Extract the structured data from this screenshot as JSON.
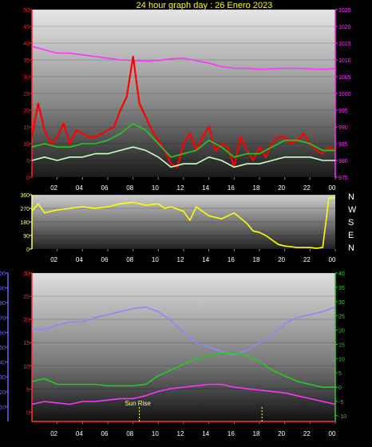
{
  "title": "24 hour graph day : 26 Enero 2023",
  "compass": [
    "N",
    "W",
    "S",
    "E",
    "N"
  ],
  "colors": {
    "title": "#ffff00",
    "wind_avg": "#ff0000",
    "wind_smooth": "#22cc22",
    "wind_gust_light": "#ccffcc",
    "pressure": "#ff33ff",
    "direction": "#ffff00",
    "humidity": "#8888ff",
    "temperature": "#22cc22",
    "dewpoint": "#ff33ff",
    "axis_left_speed": "#ff2222",
    "axis_right_pressure": "#ff33ff",
    "axis_humidity": "#6666ff",
    "axis_temp_left": "#ff3333",
    "axis_temp_right": "#33cc33",
    "sun": "#ffff66"
  },
  "chart_data": [
    {
      "type": "line",
      "name": "wind-and-pressure",
      "x_ticks": [
        "02",
        "04",
        "06",
        "08",
        "10",
        "12",
        "14",
        "16",
        "18",
        "20",
        "22",
        "00"
      ],
      "xlim": [
        0,
        24
      ],
      "y_left": {
        "ticks": [
          "0",
          "5",
          "10",
          "15",
          "20",
          "25",
          "30",
          "35",
          "40",
          "45",
          "50"
        ],
        "ylim": [
          0,
          50
        ]
      },
      "y_right": {
        "ticks": [
          "975",
          "980",
          "985",
          "990",
          "995",
          "1000",
          "1005",
          "1010",
          "1015",
          "1020",
          "1025"
        ],
        "ylim": [
          975,
          1025
        ]
      },
      "series": [
        {
          "axis": "right",
          "color_key": "pressure",
          "x": [
            0,
            1,
            2,
            3,
            4,
            5,
            6,
            7,
            8,
            9,
            10,
            11,
            12,
            13,
            14,
            15,
            16,
            17,
            18,
            19,
            20,
            21,
            22,
            23,
            24
          ],
          "y": [
            1014,
            1013,
            1012,
            1012,
            1011.5,
            1011,
            1010.5,
            1010,
            1009.8,
            1009.6,
            1009.8,
            1010.3,
            1010.5,
            1009.8,
            1009,
            1008,
            1007.5,
            1007.5,
            1007.2,
            1007.3,
            1007.5,
            1007.5,
            1007.3,
            1007.2,
            1007.4
          ]
        },
        {
          "axis": "left",
          "color_key": "wind_avg",
          "x": [
            0,
            0.5,
            1,
            1.5,
            2,
            2.5,
            3,
            3.5,
            4,
            4.5,
            5,
            5.5,
            6,
            6.5,
            7,
            7.5,
            8,
            8.5,
            9,
            9.5,
            10,
            10.5,
            11,
            11.5,
            12,
            12.5,
            13,
            13.5,
            14,
            14.5,
            15,
            15.5,
            16,
            16.5,
            17,
            17.5,
            18,
            18.5,
            19,
            19.5,
            20,
            20.5,
            21,
            21.5,
            22,
            22.5,
            23,
            23.5,
            24
          ],
          "y": [
            12,
            22,
            14,
            10,
            12,
            16,
            10,
            14,
            13,
            12,
            12,
            13,
            14,
            15,
            20,
            24,
            36,
            22,
            18,
            14,
            11,
            8,
            4,
            3,
            10,
            13,
            8,
            12,
            15,
            8,
            10,
            9,
            3,
            12,
            8,
            5,
            9,
            6,
            10,
            12,
            12,
            10,
            11,
            13,
            10,
            8,
            7,
            9,
            8
          ]
        },
        {
          "axis": "left",
          "color_key": "wind_smooth",
          "x": [
            0,
            1,
            2,
            3,
            4,
            5,
            6,
            7,
            8,
            9,
            10,
            11,
            12,
            13,
            14,
            15,
            16,
            17,
            18,
            19,
            20,
            21,
            22,
            23,
            24
          ],
          "y": [
            9,
            10,
            9,
            9,
            10,
            10,
            11,
            13,
            16,
            14,
            10,
            6,
            7,
            8,
            11,
            9,
            6,
            7,
            7,
            9,
            11,
            11,
            10,
            8,
            8
          ]
        },
        {
          "axis": "left",
          "color_key": "wind_gust_light",
          "x": [
            0,
            1,
            2,
            3,
            4,
            5,
            6,
            7,
            8,
            9,
            10,
            11,
            12,
            13,
            14,
            15,
            16,
            17,
            18,
            19,
            20,
            21,
            22,
            23,
            24
          ],
          "y": [
            5,
            6,
            5,
            6,
            6,
            7,
            7,
            8,
            9,
            8,
            6,
            3,
            4,
            4,
            6,
            5,
            3,
            4,
            4,
            5,
            6,
            6,
            6,
            5,
            5
          ]
        }
      ]
    },
    {
      "type": "line",
      "name": "wind-direction",
      "x_ticks": [
        "02",
        "04",
        "06",
        "08",
        "10",
        "12",
        "14",
        "16",
        "18",
        "20",
        "22",
        "00"
      ],
      "xlim": [
        0,
        24
      ],
      "y_left": {
        "ticks": [
          "0",
          "90",
          "180",
          "270",
          "360"
        ],
        "ylim": [
          0,
          360
        ]
      },
      "series": [
        {
          "axis": "left",
          "color_key": "direction",
          "x": [
            0,
            0.5,
            1,
            2,
            3,
            4,
            5,
            6,
            7,
            8,
            9,
            10,
            10.5,
            11,
            12,
            12.5,
            13,
            14,
            15,
            16,
            17,
            17.5,
            18,
            18.5,
            19,
            19.5,
            20,
            21,
            22,
            22.5,
            23,
            23.5,
            24
          ],
          "y": [
            250,
            300,
            240,
            260,
            270,
            280,
            270,
            280,
            300,
            310,
            290,
            300,
            270,
            280,
            250,
            190,
            280,
            220,
            200,
            240,
            170,
            120,
            110,
            90,
            60,
            30,
            20,
            10,
            10,
            5,
            10,
            340,
            340
          ]
        }
      ]
    },
    {
      "type": "line",
      "name": "temperature-humidity",
      "x_ticks": [
        "02",
        "04",
        "06",
        "08",
        "10",
        "12",
        "14",
        "16",
        "18",
        "20",
        "22",
        "00"
      ],
      "xlim": [
        0,
        24
      ],
      "y_left_outer": {
        "ticks": [
          "10",
          "20",
          "30",
          "40",
          "50",
          "60",
          "70",
          "80",
          "90",
          "100"
        ],
        "ylim": [
          0,
          100
        ]
      },
      "y_left_inner": {
        "ticks": [
          "0",
          "5",
          "10",
          "15",
          "20",
          "25",
          "30"
        ],
        "ylim": [
          -2,
          30
        ]
      },
      "y_right": {
        "ticks": [
          "-10",
          "-5",
          "0",
          "5",
          "10",
          "15",
          "20",
          "25",
          "30",
          "35",
          "40"
        ],
        "ylim": [
          -12,
          40
        ]
      },
      "annotations": [
        "Sun Rise"
      ],
      "sun_events_hours": [
        8.5,
        18.2
      ],
      "series": [
        {
          "axis": "left_outer",
          "color_key": "humidity",
          "x": [
            0,
            1,
            2,
            3,
            4,
            5,
            6,
            7,
            8,
            9,
            10,
            11,
            12,
            13,
            14,
            15,
            16,
            17,
            18,
            19,
            20,
            21,
            22,
            23,
            24
          ],
          "y": [
            62,
            62,
            65,
            67,
            67,
            70,
            72,
            74,
            76,
            77,
            74,
            68,
            60,
            53,
            50,
            47,
            45,
            48,
            53,
            58,
            66,
            70,
            72,
            74,
            77
          ]
        },
        {
          "axis": "right",
          "color_key": "temperature",
          "x": [
            0,
            1,
            2,
            3,
            4,
            5,
            6,
            7,
            8,
            9,
            10,
            11,
            12,
            13,
            14,
            15,
            16,
            17,
            18,
            19,
            20,
            21,
            22,
            23,
            24
          ],
          "y": [
            2,
            3,
            1,
            1,
            1,
            1,
            0.5,
            0.5,
            0.5,
            1,
            4,
            6,
            8,
            10,
            11,
            12,
            12,
            11,
            9,
            6,
            4,
            2,
            1,
            0,
            0
          ]
        },
        {
          "axis": "right",
          "color_key": "dewpoint",
          "x": [
            0,
            1,
            2,
            3,
            4,
            5,
            6,
            7,
            8,
            9,
            10,
            11,
            12,
            13,
            14,
            15,
            16,
            17,
            18,
            19,
            20,
            21,
            22,
            23,
            24
          ],
          "y": [
            -6,
            -5,
            -5.5,
            -6,
            -5,
            -5,
            -4.5,
            -4,
            -4,
            -3,
            -1.5,
            -0.5,
            0,
            0.5,
            1,
            1,
            0,
            -0.5,
            -1,
            -1.5,
            -2,
            -3,
            -4,
            -5,
            -6
          ]
        },
        {
          "axis": "right",
          "color_key": "axis_temp_left",
          "x": [
            0,
            24
          ],
          "y": [
            -12,
            -12
          ]
        }
      ]
    }
  ]
}
